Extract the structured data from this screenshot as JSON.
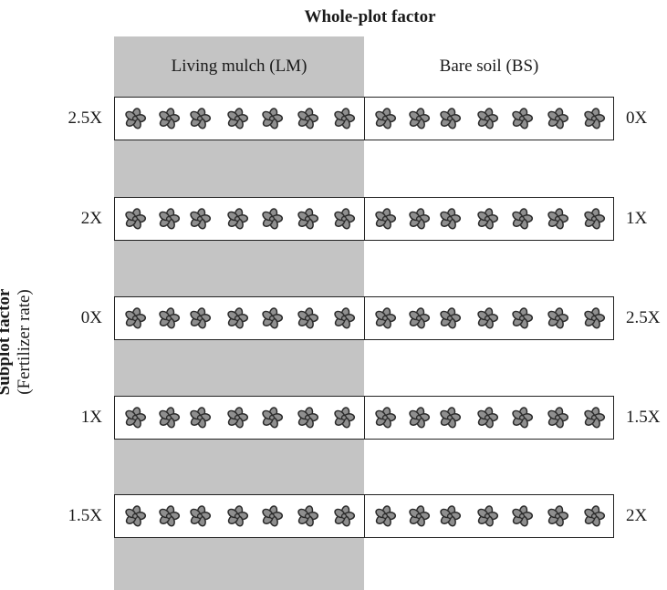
{
  "header": {
    "title": "Whole-plot factor"
  },
  "columns": {
    "living_mulch": "Living mulch (LM)",
    "bare_soil": "Bare soil (BS)"
  },
  "side_axis": {
    "title": "Subplot factor",
    "subtitle": "(Fertilizer rate)"
  },
  "rows": [
    {
      "left_rate": "2.5X",
      "right_rate": "0X"
    },
    {
      "left_rate": "2X",
      "right_rate": "1X"
    },
    {
      "left_rate": "0X",
      "right_rate": "2.5X"
    },
    {
      "left_rate": "1X",
      "right_rate": "1.5X"
    },
    {
      "left_rate": "1.5X",
      "right_rate": "2X"
    }
  ],
  "plants_per_side": 7,
  "colors": {
    "lm_band": "#c4c4c4",
    "plant_fill": "#8f8f8f",
    "plant_outline": "#2a2a2a"
  },
  "icons": {
    "plant": "plant-icon"
  }
}
